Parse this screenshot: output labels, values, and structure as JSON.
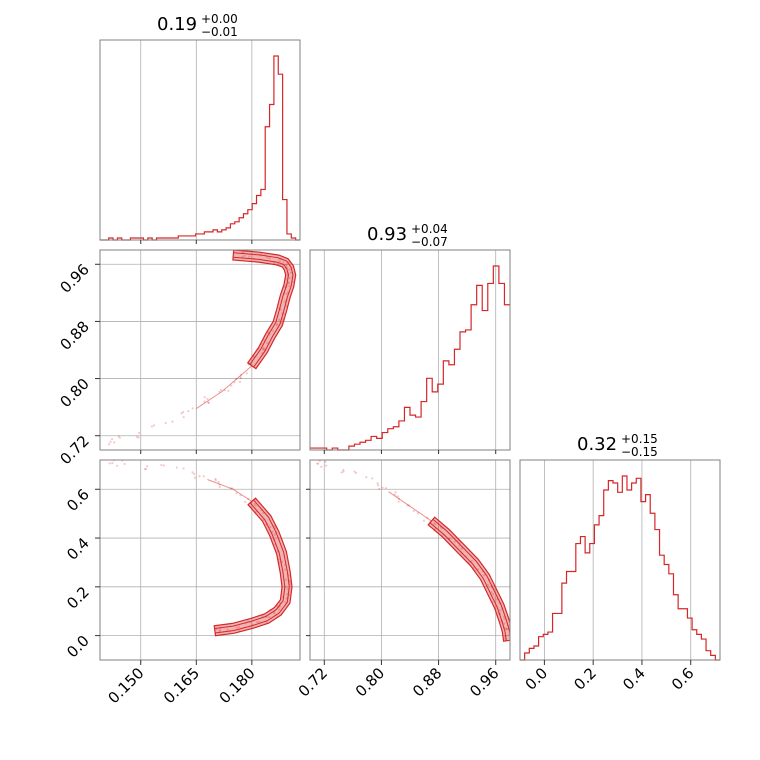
{
  "chart_data": {
    "type": "corner",
    "color": "#d62728",
    "parameters": [
      {
        "key": "p1",
        "title": {
          "value": "0.19",
          "plus": "+0.00",
          "minus": "−0.01"
        },
        "range": [
          0.139,
          0.193
        ],
        "ticks": [
          0.15,
          0.165,
          0.18
        ],
        "tick_labels": [
          "0.150",
          "0.165",
          "0.180"
        ],
        "hist_bins": [
          0,
          0,
          0.01,
          0,
          0.01,
          0,
          0,
          0.01,
          0.01,
          0.01,
          0,
          0.01,
          0,
          0.01,
          0.01,
          0.01,
          0.01,
          0.01,
          0.02,
          0.02,
          0.02,
          0.02,
          0.03,
          0.03,
          0.04,
          0.04,
          0.05,
          0.04,
          0.05,
          0.06,
          0.08,
          0.09,
          0.11,
          0.13,
          0.15,
          0.18,
          0.22,
          0.25,
          0.56,
          0.67,
          0.91,
          0.82,
          0.2,
          0.03,
          0.01,
          0.0
        ]
      },
      {
        "key": "p2",
        "title": {
          "value": "0.93",
          "plus": "+0.04",
          "minus": "−0.07"
        },
        "range": [
          0.7,
          0.98
        ],
        "ticks": [
          0.72,
          0.8,
          0.88,
          0.96
        ],
        "tick_labels": [
          "0.72",
          "0.80",
          "0.88",
          "0.96"
        ],
        "hist_bins": [
          0.01,
          0.01,
          0.01,
          0.0,
          0.01,
          0.0,
          0.0,
          0.02,
          0.03,
          0.04,
          0.05,
          0.07,
          0.06,
          0.09,
          0.11,
          0.12,
          0.15,
          0.22,
          0.18,
          0.17,
          0.25,
          0.37,
          0.3,
          0.34,
          0.46,
          0.44,
          0.52,
          0.61,
          0.62,
          0.75,
          0.85,
          0.72,
          0.86,
          0.95,
          0.86,
          0.75
        ]
      },
      {
        "key": "p3",
        "title": {
          "value": "0.32",
          "plus": "+0.15",
          "minus": "−0.15"
        },
        "range": [
          -0.1,
          0.72
        ],
        "ticks": [
          0.0,
          0.2,
          0.4,
          0.6
        ],
        "tick_labels": [
          "0.0",
          "0.2",
          "0.4",
          "0.6"
        ],
        "hist_bins": [
          0.0,
          0.03,
          0.05,
          0.06,
          0.1,
          0.11,
          0.12,
          0.2,
          0.2,
          0.33,
          0.38,
          0.38,
          0.5,
          0.53,
          0.46,
          0.5,
          0.58,
          0.62,
          0.73,
          0.77,
          0.76,
          0.72,
          0.79,
          0.73,
          0.76,
          0.78,
          0.68,
          0.71,
          0.63,
          0.56,
          0.45,
          0.41,
          0.37,
          0.28,
          0.22,
          0.22,
          0.18,
          0.13,
          0.11,
          0.09,
          0.04,
          0.02,
          0.0
        ]
      }
    ],
    "joint_ridges": {
      "p1_p2": [
        [
          0.14,
          0.708
        ],
        [
          0.148,
          0.722
        ],
        [
          0.157,
          0.735
        ],
        [
          0.165,
          0.758
        ],
        [
          0.172,
          0.782
        ],
        [
          0.176,
          0.8
        ],
        [
          0.18,
          0.818
        ],
        [
          0.183,
          0.84
        ],
        [
          0.185,
          0.86
        ],
        [
          0.187,
          0.877
        ],
        [
          0.188,
          0.895
        ],
        [
          0.189,
          0.915
        ],
        [
          0.19,
          0.93
        ],
        [
          0.1905,
          0.945
        ],
        [
          0.19,
          0.955
        ],
        [
          0.189,
          0.962
        ],
        [
          0.187,
          0.966
        ],
        [
          0.182,
          0.97
        ],
        [
          0.175,
          0.973
        ]
      ],
      "p1_p3": [
        [
          0.14,
          0.71
        ],
        [
          0.15,
          0.7
        ],
        [
          0.16,
          0.68
        ],
        [
          0.168,
          0.64
        ],
        [
          0.175,
          0.6
        ],
        [
          0.18,
          0.55
        ],
        [
          0.184,
          0.48
        ],
        [
          0.186,
          0.42
        ],
        [
          0.188,
          0.34
        ],
        [
          0.189,
          0.26
        ],
        [
          0.1895,
          0.2
        ],
        [
          0.189,
          0.14
        ],
        [
          0.187,
          0.1
        ],
        [
          0.184,
          0.07
        ],
        [
          0.18,
          0.05
        ],
        [
          0.175,
          0.03
        ],
        [
          0.17,
          0.02
        ]
      ],
      "p2_p3": [
        [
          0.703,
          0.71
        ],
        [
          0.74,
          0.69
        ],
        [
          0.78,
          0.64
        ],
        [
          0.81,
          0.59
        ],
        [
          0.84,
          0.53
        ],
        [
          0.87,
          0.47
        ],
        [
          0.89,
          0.42
        ],
        [
          0.91,
          0.36
        ],
        [
          0.93,
          0.3
        ],
        [
          0.945,
          0.24
        ],
        [
          0.955,
          0.18
        ],
        [
          0.965,
          0.12
        ],
        [
          0.972,
          0.06
        ],
        [
          0.976,
          0.02
        ],
        [
          0.978,
          -0.02
        ]
      ]
    }
  }
}
